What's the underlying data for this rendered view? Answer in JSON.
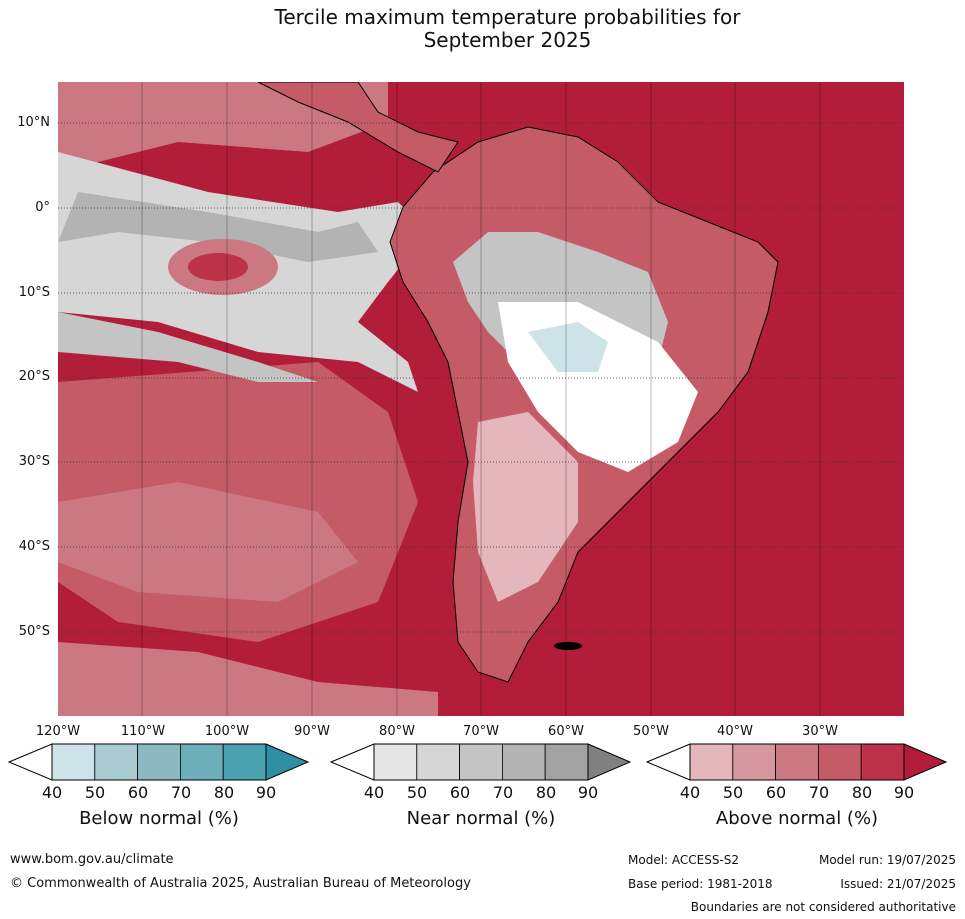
{
  "title_line1": "Tercile maximum temperature probabilities for",
  "title_line2": "September 2025",
  "lat_labels": [
    "10°N",
    "0°",
    "10°S",
    "20°S",
    "30°S",
    "40°S",
    "50°S"
  ],
  "lon_labels": [
    "120°W",
    "110°W",
    "100°W",
    "90°W",
    "80°W",
    "70°W",
    "60°W",
    "50°W",
    "40°W",
    "30°W"
  ],
  "colorbars": [
    {
      "title": "Below normal (%)",
      "ticks": [
        "40",
        "50",
        "60",
        "70",
        "80",
        "90"
      ],
      "colors": [
        "#cde3e8",
        "#a9cbd1",
        "#8cb8c1",
        "#6caeb9",
        "#4aa1b0",
        "#2e8fa3"
      ]
    },
    {
      "title": "Near normal (%)",
      "ticks": [
        "40",
        "50",
        "60",
        "70",
        "80",
        "90"
      ],
      "colors": [
        "#e6e6e6",
        "#d6d6d6",
        "#c4c4c4",
        "#b3b3b3",
        "#a2a2a2",
        "#808080"
      ]
    },
    {
      "title": "Above normal (%)",
      "ticks": [
        "40",
        "50",
        "60",
        "70",
        "80",
        "90"
      ],
      "colors": [
        "#e3b7bc",
        "#d6979f",
        "#cb7882",
        "#c45b67",
        "#bd3248",
        "#b21d3a"
      ]
    }
  ],
  "footer": {
    "url": "www.bom.gov.au/climate",
    "copyright": "© Commonwealth of Australia 2025, Australian Bureau of Meteorology",
    "model": "Model: ACCESS-S2",
    "model_run": "Model run: 19/07/2025",
    "base_period": "Base period: 1981-2018",
    "issued": "Issued: 21/07/2025",
    "disclaimer": "Boundaries are not considered authoritative"
  }
}
